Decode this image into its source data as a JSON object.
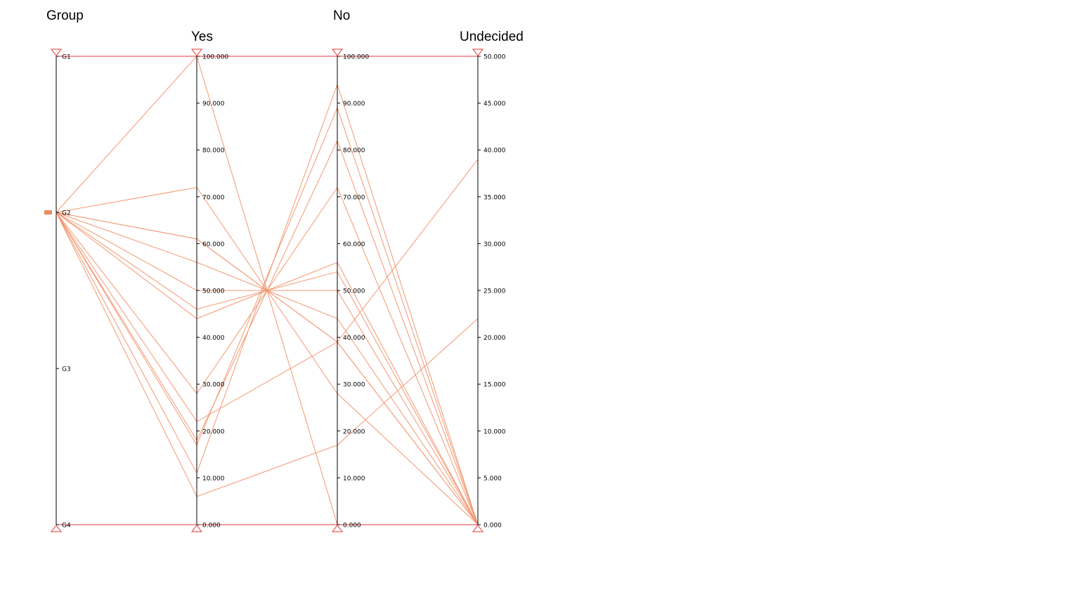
{
  "chart_data": {
    "type": "parallel-coordinates",
    "line_color": "#f29872",
    "bound_color": "#e03a3a",
    "axes": [
      {
        "key": "group",
        "title": "Group",
        "kind": "categorical",
        "categories": [
          "G1",
          "G2",
          "G3",
          "G4"
        ]
      },
      {
        "key": "yes",
        "title": "Yes",
        "kind": "numeric",
        "range": [
          0,
          100
        ],
        "ticks": [
          "0.000",
          "10.000",
          "20.000",
          "30.000",
          "40.000",
          "50.000",
          "60.000",
          "70.000",
          "80.000",
          "90.000",
          "100.000"
        ]
      },
      {
        "key": "no",
        "title": "No",
        "kind": "numeric",
        "range": [
          0,
          100
        ],
        "ticks": [
          "0.000",
          "10.000",
          "20.000",
          "30.000",
          "40.000",
          "50.000",
          "60.000",
          "70.000",
          "80.000",
          "90.000",
          "100.000"
        ]
      },
      {
        "key": "undecided",
        "title": "Undecided",
        "kind": "numeric",
        "range": [
          0,
          50
        ],
        "ticks": [
          "0.000",
          "5.000",
          "10.000",
          "15.000",
          "20.000",
          "25.000",
          "30.000",
          "35.000",
          "40.000",
          "45.000",
          "50.000"
        ]
      }
    ],
    "records": [
      {
        "group": "G2",
        "yes": 100,
        "no": 0,
        "undecided": 0
      },
      {
        "group": "G2",
        "yes": 72,
        "no": 28,
        "undecided": 0
      },
      {
        "group": "G2",
        "yes": 61,
        "no": 39,
        "undecided": 0
      },
      {
        "group": "G2",
        "yes": 61,
        "no": 39,
        "undecided": 0
      },
      {
        "group": "G2",
        "yes": 56,
        "no": 44,
        "undecided": 0
      },
      {
        "group": "G2",
        "yes": 50,
        "no": 50,
        "undecided": 0
      },
      {
        "group": "G2",
        "yes": 46,
        "no": 54,
        "undecided": 0
      },
      {
        "group": "G2",
        "yes": 44,
        "no": 56,
        "undecided": 0
      },
      {
        "group": "G2",
        "yes": 28,
        "no": 72,
        "undecided": 0
      },
      {
        "group": "G2",
        "yes": 22,
        "no": 39,
        "undecided": 39
      },
      {
        "group": "G2",
        "yes": 18,
        "no": 82,
        "undecided": 0
      },
      {
        "group": "G2",
        "yes": 17,
        "no": 89,
        "undecided": 0
      },
      {
        "group": "G2",
        "yes": 11,
        "no": 94,
        "undecided": 0
      },
      {
        "group": "G2",
        "yes": 6,
        "no": 17,
        "undecided": 22
      }
    ]
  }
}
